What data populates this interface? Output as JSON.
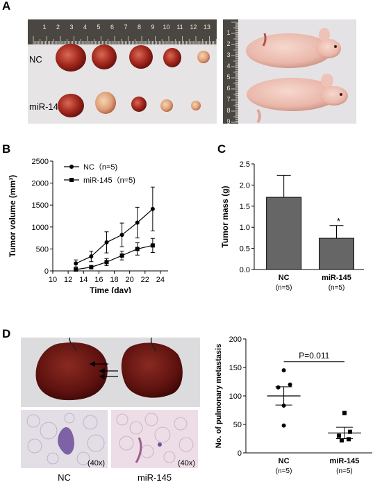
{
  "panels": {
    "a": {
      "letter": "A",
      "row_labels": [
        "NC",
        "miR-145"
      ],
      "ruler_numbers": [
        "1",
        "2",
        "3",
        "4",
        "5",
        "6",
        "7",
        "8",
        "9",
        "10",
        "11",
        "12",
        "13"
      ],
      "side_ruler_numbers": [
        "1",
        "2",
        "3",
        "4",
        "5",
        "6",
        "7",
        "8",
        "9"
      ]
    },
    "b": {
      "letter": "B"
    },
    "c": {
      "letter": "C"
    },
    "d": {
      "letter": "D",
      "magnification": [
        "(40x)",
        "(40x)"
      ],
      "histology_labels": [
        "NC",
        "miR-145"
      ]
    }
  },
  "chart_data": [
    {
      "type": "line",
      "panel": "B",
      "xlabel": "Time (day)",
      "ylabel": "Tumor volume (mm³)",
      "xlim": [
        10,
        25
      ],
      "ylim": [
        0,
        2500
      ],
      "xticks": [
        10,
        12,
        14,
        16,
        18,
        20,
        22,
        24
      ],
      "yticks": [
        0,
        500,
        1000,
        1500,
        2000,
        2500
      ],
      "legend_position": "top-left",
      "series": [
        {
          "name": "NC（n=5)",
          "marker": "circle",
          "x": [
            13,
            15,
            17,
            19,
            21,
            23
          ],
          "y": [
            170,
            330,
            650,
            820,
            1100,
            1410
          ],
          "err": [
            80,
            120,
            240,
            270,
            350,
            500
          ]
        },
        {
          "name": "miR-145（n=5)",
          "marker": "square",
          "x": [
            13,
            15,
            17,
            19,
            21,
            23
          ],
          "y": [
            30,
            85,
            200,
            350,
            500,
            580
          ],
          "err": [
            20,
            40,
            80,
            100,
            140,
            160
          ]
        }
      ]
    },
    {
      "type": "bar",
      "panel": "C",
      "ylabel": "Tumor mass (g)",
      "ylim": [
        0,
        2.5
      ],
      "yticks": [
        "0.0",
        "0.5",
        "1.0",
        "1.5",
        "2.0",
        "2.5"
      ],
      "categories": [
        "NC",
        "miR-145"
      ],
      "category_notes": [
        "(n=5)",
        "(n=5)"
      ],
      "values": [
        1.71,
        0.74
      ],
      "err": [
        0.52,
        0.3
      ],
      "annotations": [
        "",
        "*"
      ],
      "bar_color": "#666666"
    },
    {
      "type": "scatter",
      "panel": "D",
      "ylabel": "No. of pulmonary metastasis",
      "ylim": [
        0,
        200
      ],
      "yticks": [
        0,
        50,
        100,
        150,
        200
      ],
      "categories": [
        "NC",
        "miR-145"
      ],
      "category_notes": [
        "(n=5)",
        "(n=5)"
      ],
      "groups": [
        {
          "marker": "circle",
          "points": [
            145,
            120,
            115,
            83,
            48
          ],
          "mean": 100,
          "sem": 16
        },
        {
          "marker": "square",
          "points": [
            70,
            37,
            30,
            24,
            22
          ],
          "mean": 35,
          "sem": 10
        }
      ],
      "annotation": "P=0.011"
    }
  ]
}
